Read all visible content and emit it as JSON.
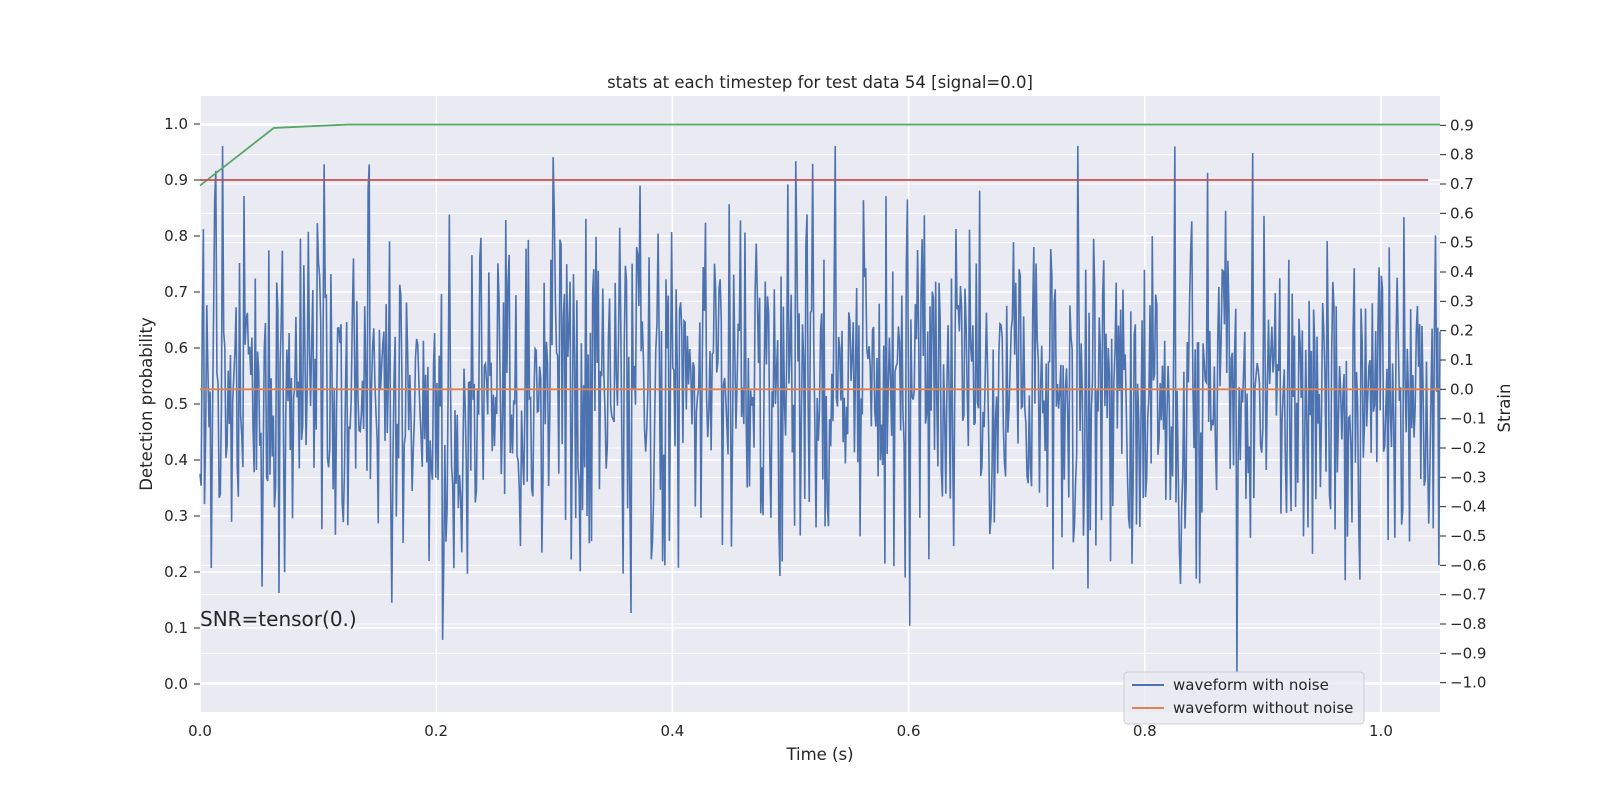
{
  "chart_data": {
    "type": "line",
    "title": "stats at each timestep for test data 54 [signal=0.0]",
    "xlabel": "Time (s)",
    "ylabel_left": "Detection probability",
    "ylabel_right": "Strain",
    "annotation": "SNR=tensor(0.)",
    "xlim": [
      0.0,
      1.05
    ],
    "ylim_left": [
      -0.05,
      1.05
    ],
    "ylim_right": [
      -1.1,
      1.0
    ],
    "xticks": [
      "0.0",
      "0.2",
      "0.4",
      "0.6",
      "0.8",
      "1.0"
    ],
    "yticks_left": [
      "0.0",
      "0.1",
      "0.2",
      "0.3",
      "0.4",
      "0.5",
      "0.6",
      "0.7",
      "0.8",
      "0.9",
      "1.0"
    ],
    "yticks_right": [
      "−1.0",
      "−0.9",
      "−0.8",
      "−0.7",
      "−0.6",
      "−0.5",
      "−0.4",
      "−0.3",
      "−0.2",
      "−0.1",
      "0.0",
      "0.1",
      "0.2",
      "0.3",
      "0.4",
      "0.5",
      "0.6",
      "0.7",
      "0.8",
      "0.9"
    ],
    "grid": true,
    "legend_position": "lower right",
    "series": [
      {
        "name": "waveform with noise",
        "axis": "right",
        "color": "#4c72b0",
        "noise_points": 1100,
        "noise_amplitude_approx": 0.3,
        "x_start": 0.0,
        "x_end": 1.05,
        "min": -1.0,
        "max": 0.83
      },
      {
        "name": "waveform without noise",
        "axis": "right",
        "color": "#dd8452",
        "x": [
          0.0,
          1.05
        ],
        "y": [
          0.0,
          0.0
        ]
      },
      {
        "axis": "left",
        "color": "#55a868",
        "x": [
          0.0,
          0.0625,
          0.125,
          1.05
        ],
        "y": [
          0.89,
          0.993,
          0.999,
          0.999
        ]
      },
      {
        "axis": "left",
        "color": "#c44e52",
        "x": [
          0.0,
          1.04
        ],
        "y": [
          0.9,
          0.9
        ]
      }
    ]
  },
  "colors": {
    "plot_background": "#eaeaf2",
    "grid": "#ffffff",
    "text": "#262626"
  }
}
